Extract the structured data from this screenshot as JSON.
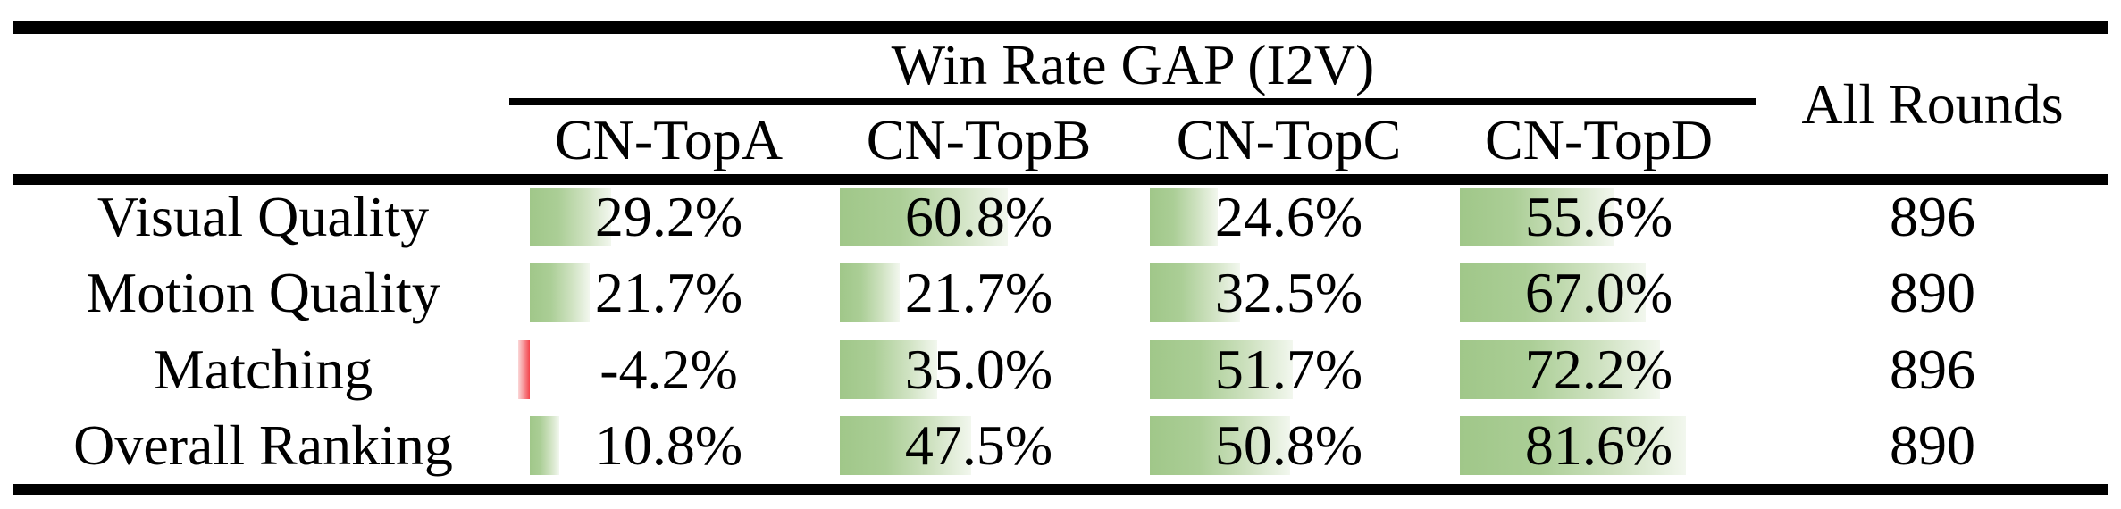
{
  "table": {
    "group_header": "Win Rate GAP (I2V)",
    "all_rounds_header": "All Rounds",
    "columns": [
      "CN-TopA",
      "CN-TopB",
      "CN-TopC",
      "CN-TopD"
    ],
    "rows": [
      {
        "label": "Visual Quality",
        "values": [
          "29.2%",
          "60.8%",
          "24.6%",
          "55.6%"
        ],
        "values_numeric": [
          29.2,
          60.8,
          24.6,
          55.6
        ],
        "all_rounds": "896"
      },
      {
        "label": "Motion Quality",
        "values": [
          "21.7%",
          "21.7%",
          "32.5%",
          "67.0%"
        ],
        "values_numeric": [
          21.7,
          21.7,
          32.5,
          67.0
        ],
        "all_rounds": "890"
      },
      {
        "label": "Matching",
        "values": [
          "-4.2%",
          "35.0%",
          "51.7%",
          "72.2%"
        ],
        "values_numeric": [
          -4.2,
          35.0,
          51.7,
          72.2
        ],
        "all_rounds": "896"
      },
      {
        "label": "Overall Ranking",
        "values": [
          "10.8%",
          "47.5%",
          "50.8%",
          "81.6%"
        ],
        "values_numeric": [
          10.8,
          47.5,
          50.8,
          81.6
        ],
        "all_rounds": "890"
      }
    ],
    "colors": {
      "positive_bar_green": "#a0c789",
      "negative_bar_red": "#f4434a",
      "rule_black": "#000000"
    }
  },
  "chart_data": {
    "type": "table",
    "title": "Win Rate GAP (I2V)",
    "row_header_column": "",
    "columns": [
      "CN-TopA",
      "CN-TopB",
      "CN-TopC",
      "CN-TopD",
      "All Rounds"
    ],
    "categories": [
      "Visual Quality",
      "Motion Quality",
      "Matching",
      "Overall Ranking"
    ],
    "series": [
      {
        "name": "CN-TopA",
        "values": [
          29.2,
          21.7,
          -4.2,
          10.8
        ],
        "unit": "%"
      },
      {
        "name": "CN-TopB",
        "values": [
          60.8,
          21.7,
          35.0,
          47.5
        ],
        "unit": "%"
      },
      {
        "name": "CN-TopC",
        "values": [
          24.6,
          32.5,
          51.7,
          50.8
        ],
        "unit": "%"
      },
      {
        "name": "CN-TopD",
        "values": [
          55.6,
          67.0,
          72.2,
          81.6
        ],
        "unit": "%"
      },
      {
        "name": "All Rounds",
        "values": [
          896,
          890,
          896,
          890
        ],
        "unit": "rounds"
      }
    ],
    "layout_hints": {
      "data_bars": "in-cell horizontal bars proportional to percentage, green gradient for positive, red gradient for negative",
      "grid": "booktabs horizontal rules only, no vertical lines"
    }
  }
}
